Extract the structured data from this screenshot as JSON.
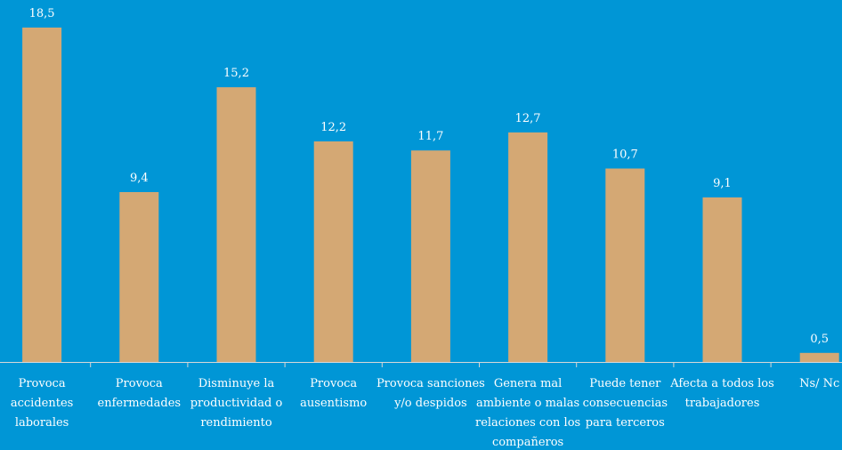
{
  "chart_data": {
    "type": "bar",
    "title": "",
    "xlabel": "",
    "ylabel": "",
    "ylim": [
      0,
      19
    ],
    "grid": false,
    "legend": "none",
    "colors": {
      "background": "#0096D6",
      "bar": "#D4A874",
      "axis": "#D8D8D8",
      "text": "#FFFFFF"
    },
    "categories": [
      "Provoca accidentes laborales",
      "Provoca enfermedades",
      "Disminuye la productividad o rendimiento",
      "Provoca ausentismo",
      "Provoca sanciones y/o despidos",
      "Genera mal ambiente o malas relaciones con los compañeros",
      "Puede tener consecuencias para terceros",
      "Afecta a todos los trabajadores",
      "Ns/ Nc"
    ],
    "category_lines": [
      [
        "Provoca",
        "accidentes",
        "laborales"
      ],
      [
        "Provoca",
        "enfermedades"
      ],
      [
        "Disminuye la",
        "productividad o",
        "rendimiento"
      ],
      [
        "Provoca",
        "ausentismo"
      ],
      [
        "Provoca sanciones",
        "y/o despidos"
      ],
      [
        "Genera mal",
        "ambiente o malas",
        "relaciones con los",
        "compañeros"
      ],
      [
        "Puede tener",
        "consecuencias",
        "para terceros"
      ],
      [
        "Afecta a todos los",
        "trabajadores"
      ],
      [
        "Ns/ Nc"
      ]
    ],
    "values": [
      18.5,
      9.4,
      15.2,
      12.2,
      11.7,
      12.7,
      10.7,
      9.1,
      0.5
    ],
    "value_labels": [
      "18,5",
      "9,4",
      "15,2",
      "12,2",
      "11,7",
      "12,7",
      "10,7",
      "9,1",
      "0,5"
    ]
  }
}
